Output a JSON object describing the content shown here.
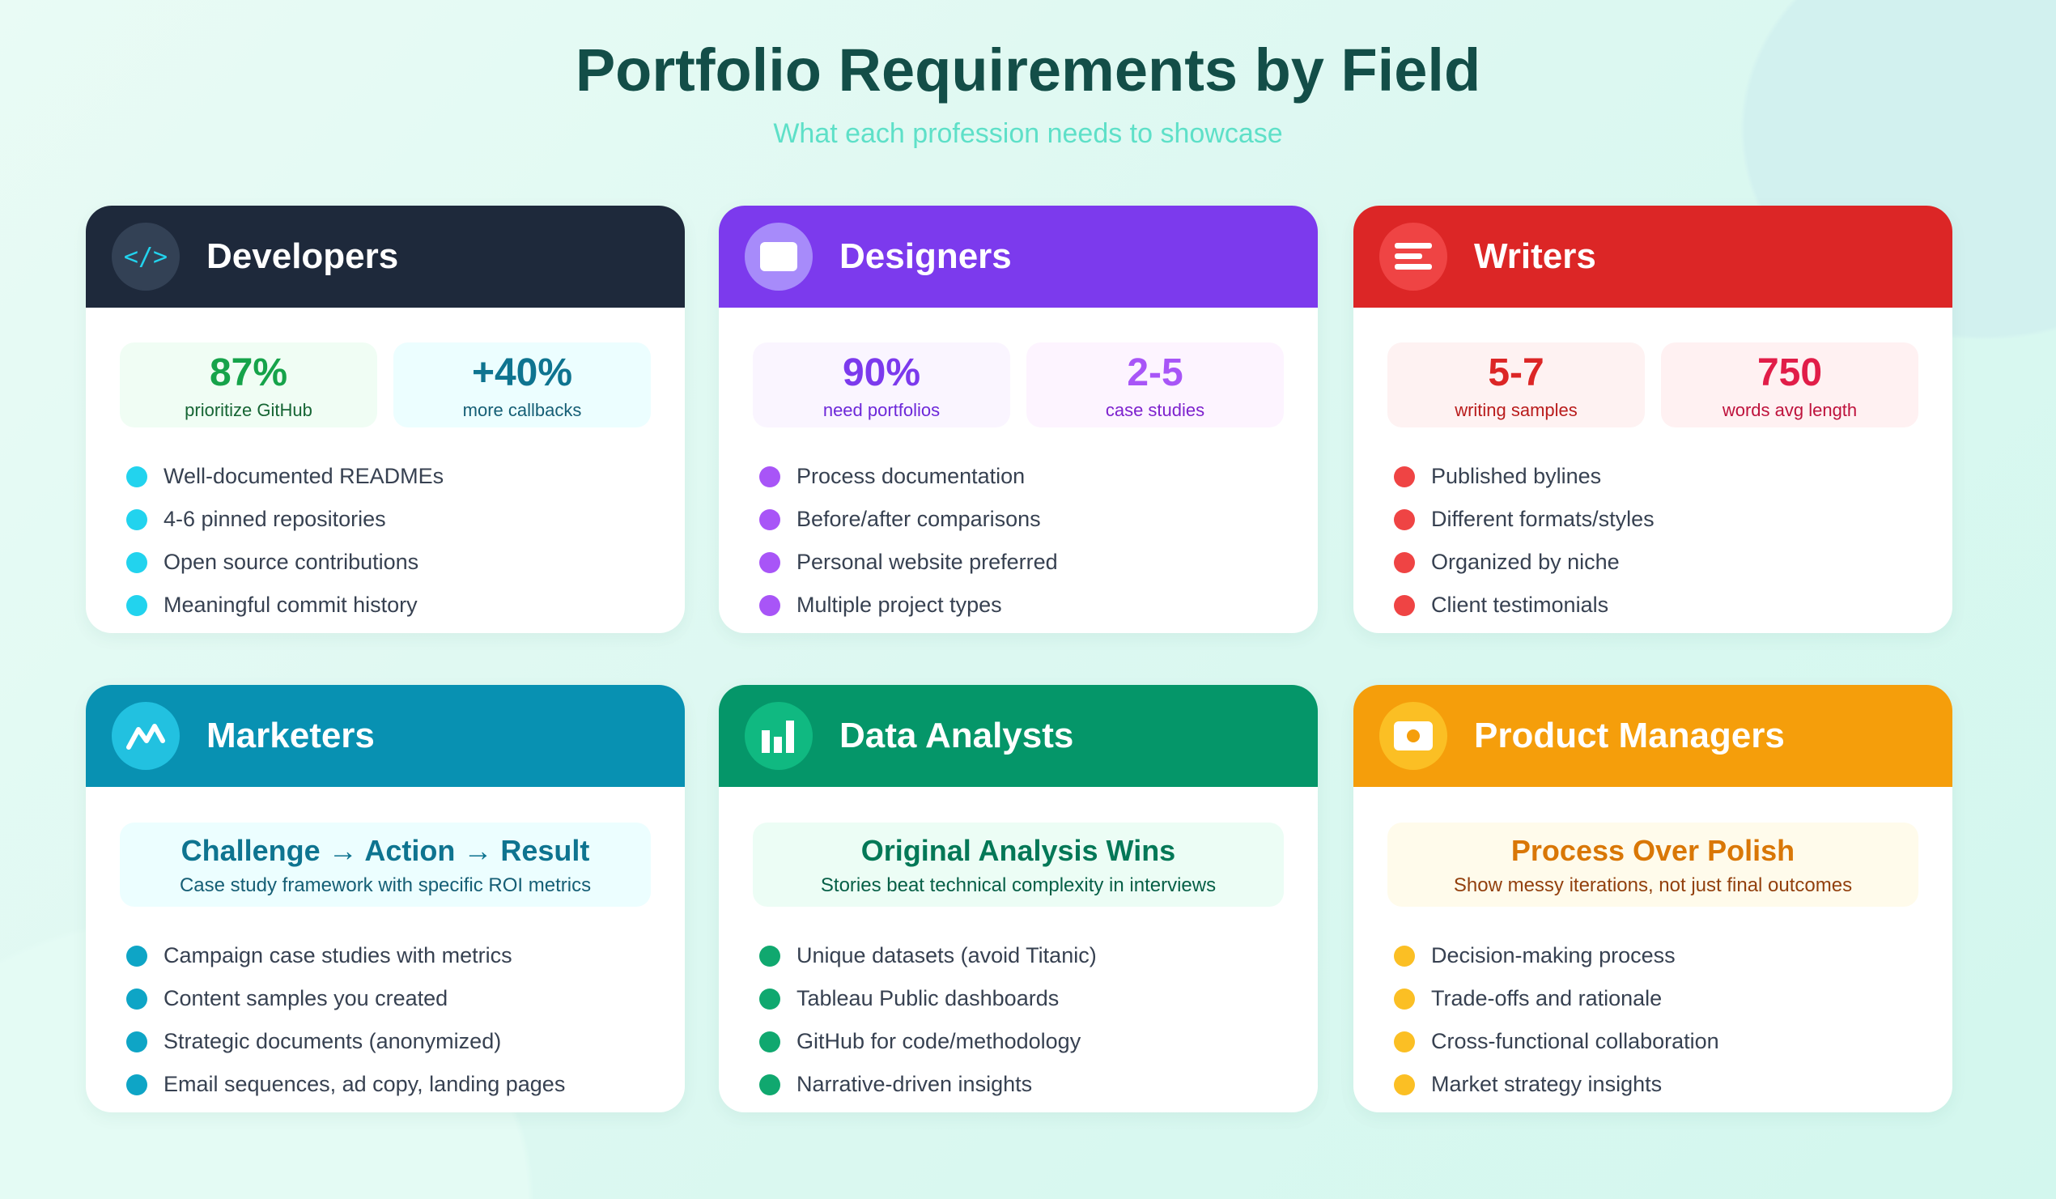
{
  "title": "Portfolio Requirements by Field",
  "subtitle": "What each profession needs to showcase",
  "cards": [
    {
      "name": "Developers",
      "icon": "code-icon",
      "color": "#1e293b",
      "stats": [
        {
          "value": "87%",
          "label": "prioritize GitHub"
        },
        {
          "value": "+40%",
          "label": "more callbacks"
        }
      ],
      "items": [
        "Well-documented READMEs",
        "4-6 pinned repositories",
        "Open source contributions",
        "Meaningful commit history"
      ]
    },
    {
      "name": "Designers",
      "icon": "image-icon",
      "color": "#7c3aed",
      "stats": [
        {
          "value": "90%",
          "label": "need portfolios"
        },
        {
          "value": "2-5",
          "label": "case studies"
        }
      ],
      "items": [
        "Process documentation",
        "Before/after comparisons",
        "Personal website preferred",
        "Multiple project types"
      ]
    },
    {
      "name": "Writers",
      "icon": "text-lines-icon",
      "color": "#dc2626",
      "stats": [
        {
          "value": "5-7",
          "label": "writing samples"
        },
        {
          "value": "750",
          "label": "words avg length"
        }
      ],
      "items": [
        "Published bylines",
        "Different formats/styles",
        "Organized by niche",
        "Client testimonials"
      ]
    },
    {
      "name": "Marketers",
      "icon": "trend-icon",
      "color": "#0891b2",
      "highlight": {
        "title": "Challenge → Action → Result",
        "text": "Case study framework with specific ROI metrics"
      },
      "items": [
        "Campaign case studies with metrics",
        "Content samples you created",
        "Strategic documents (anonymized)",
        "Email sequences, ad copy, landing pages"
      ]
    },
    {
      "name": "Data Analysts",
      "icon": "bar-chart-icon",
      "color": "#059669",
      "highlight": {
        "title": "Original Analysis Wins",
        "text": "Stories beat technical complexity in interviews"
      },
      "items": [
        "Unique datasets (avoid Titanic)",
        "Tableau Public dashboards",
        "GitHub for code/methodology",
        "Narrative-driven insights"
      ]
    },
    {
      "name": "Product Managers",
      "icon": "camera-icon",
      "color": "#f59e0b",
      "highlight": {
        "title": "Process Over Polish",
        "text": "Show messy iterations, not just final outcomes"
      },
      "items": [
        "Decision-making process",
        "Trade-offs and rationale",
        "Cross-functional collaboration",
        "Market strategy insights"
      ]
    }
  ]
}
